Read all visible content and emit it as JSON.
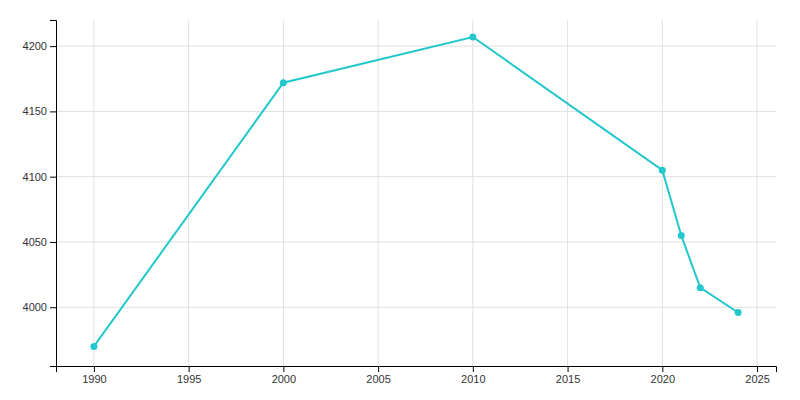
{
  "chart_data": {
    "type": "line",
    "x": [
      1990,
      2000,
      2010,
      2020,
      2021,
      2022,
      2024
    ],
    "values": [
      3970,
      4172,
      4207,
      4105,
      4055,
      4015,
      3996
    ],
    "color": "#22c8cc",
    "marker": "circle",
    "xlim": [
      1988,
      2026
    ],
    "ylim": [
      3955,
      4220
    ],
    "xticks": [
      1990,
      1995,
      2000,
      2005,
      2010,
      2015,
      2020,
      2025
    ],
    "yticks": [
      4000,
      4050,
      4100,
      4150,
      4200
    ],
    "grid": true
  }
}
